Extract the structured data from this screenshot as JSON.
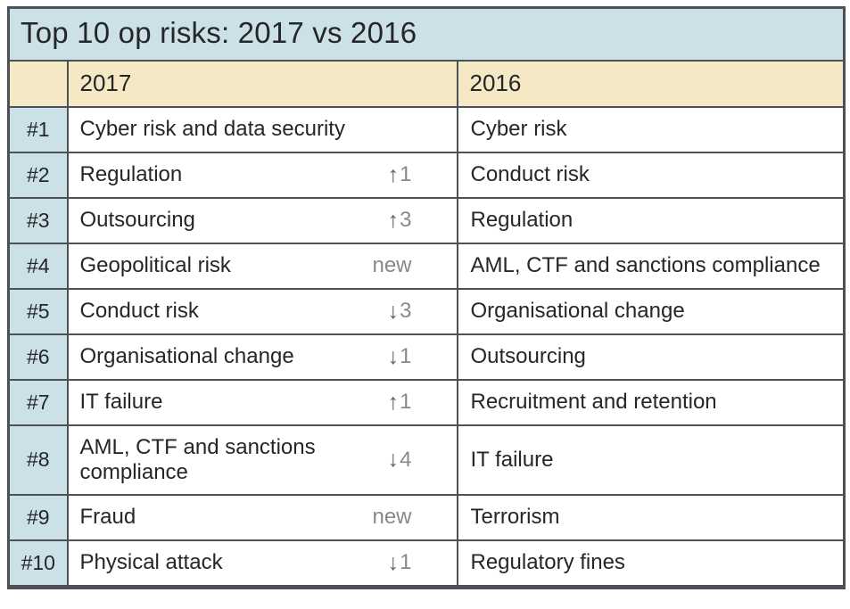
{
  "title": "Top 10 op risks: 2017 vs 2016",
  "icons": {
    "up_arrow": "↑",
    "down_arrow": "↓"
  },
  "colors": {
    "blue": "#cbe1e7",
    "cream": "#f5e8c5",
    "border": "#4b5156",
    "text": "#242628",
    "change-arrow": "#5b6165",
    "change-num": "#87898c"
  },
  "chart_data": {
    "type": "table",
    "title": "Top 10 op risks: 2017 vs 2016",
    "columns": [
      "",
      "2017",
      "2016"
    ],
    "rows": [
      {
        "rank": "#1",
        "risk_2017": "Cyber risk and data security",
        "change": null,
        "risk_2016": "Cyber risk"
      },
      {
        "rank": "#2",
        "risk_2017": "Regulation",
        "change": {
          "direction": "up",
          "amount": "1"
        },
        "risk_2016": "Conduct risk"
      },
      {
        "rank": "#3",
        "risk_2017": "Outsourcing",
        "change": {
          "direction": "up",
          "amount": "3"
        },
        "risk_2016": "Regulation"
      },
      {
        "rank": "#4",
        "risk_2017": "Geopolitical risk",
        "change": {
          "direction": "new",
          "label": "new"
        },
        "risk_2016": "AML, CTF and sanctions compliance"
      },
      {
        "rank": "#5",
        "risk_2017": "Conduct risk",
        "change": {
          "direction": "down",
          "amount": "3"
        },
        "risk_2016": "Organisational change"
      },
      {
        "rank": "#6",
        "risk_2017": "Organisational change",
        "change": {
          "direction": "down",
          "amount": "1"
        },
        "risk_2016": "Outsourcing"
      },
      {
        "rank": "#7",
        "risk_2017": "IT failure",
        "change": {
          "direction": "up",
          "amount": "1"
        },
        "risk_2016": "Recruitment and retention"
      },
      {
        "rank": "#8",
        "risk_2017": "AML, CTF and sanctions\ncompliance",
        "change": {
          "direction": "down",
          "amount": "4"
        },
        "risk_2016": "IT failure"
      },
      {
        "rank": "#9",
        "risk_2017": "Fraud",
        "change": {
          "direction": "new",
          "label": "new"
        },
        "risk_2016": "Terrorism"
      },
      {
        "rank": "#10",
        "risk_2017": "Physical attack",
        "change": {
          "direction": "down",
          "amount": "1"
        },
        "risk_2016": "Regulatory fines"
      }
    ]
  }
}
